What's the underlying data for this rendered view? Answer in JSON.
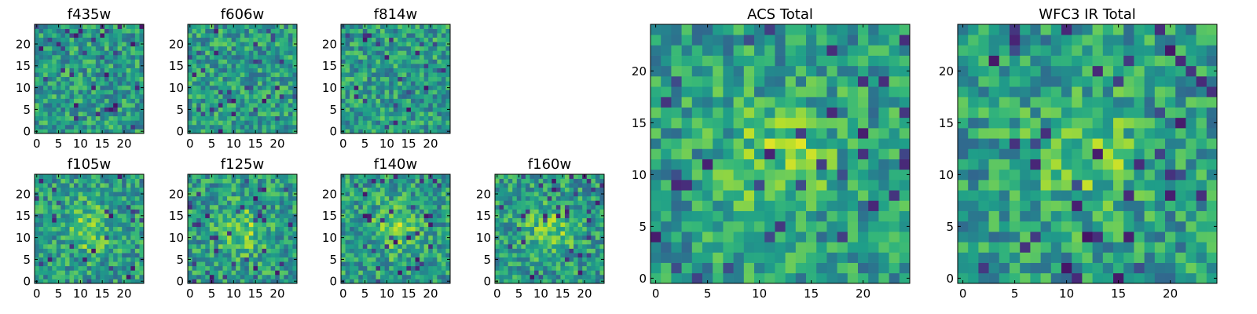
{
  "chart_data": [
    {
      "type": "heatmap",
      "title": "f435w",
      "xticks": [
        "0",
        "5",
        "10",
        "15",
        "20"
      ],
      "yticks": [
        "0",
        "5",
        "10",
        "15",
        "20"
      ],
      "xlim": [
        -0.5,
        24.5
      ],
      "ylim": [
        -0.5,
        24.5
      ],
      "grid_size": 25,
      "colormap": "viridis"
    },
    {
      "type": "heatmap",
      "title": "f606w",
      "xticks": [
        "0",
        "5",
        "10",
        "15",
        "20"
      ],
      "yticks": [
        "0",
        "5",
        "10",
        "15",
        "20"
      ],
      "xlim": [
        -0.5,
        24.5
      ],
      "ylim": [
        -0.5,
        24.5
      ],
      "grid_size": 25,
      "colormap": "viridis"
    },
    {
      "type": "heatmap",
      "title": "f814w",
      "xticks": [
        "0",
        "5",
        "10",
        "15",
        "20"
      ],
      "yticks": [
        "0",
        "5",
        "10",
        "15",
        "20"
      ],
      "xlim": [
        -0.5,
        24.5
      ],
      "ylim": [
        -0.5,
        24.5
      ],
      "grid_size": 25,
      "colormap": "viridis"
    },
    {
      "type": "heatmap",
      "title": "f105w",
      "xticks": [
        "0",
        "5",
        "10",
        "15",
        "20"
      ],
      "yticks": [
        "0",
        "5",
        "10",
        "15",
        "20"
      ],
      "xlim": [
        -0.5,
        24.5
      ],
      "ylim": [
        -0.5,
        24.5
      ],
      "grid_size": 25,
      "colormap": "viridis"
    },
    {
      "type": "heatmap",
      "title": "f125w",
      "xticks": [
        "0",
        "5",
        "10",
        "15",
        "20"
      ],
      "yticks": [
        "0",
        "5",
        "10",
        "15",
        "20"
      ],
      "xlim": [
        -0.5,
        24.5
      ],
      "ylim": [
        -0.5,
        24.5
      ],
      "grid_size": 25,
      "colormap": "viridis"
    },
    {
      "type": "heatmap",
      "title": "f140w",
      "xticks": [
        "0",
        "5",
        "10",
        "15",
        "20"
      ],
      "yticks": [
        "0",
        "5",
        "10",
        "15",
        "20"
      ],
      "xlim": [
        -0.5,
        24.5
      ],
      "ylim": [
        -0.5,
        24.5
      ],
      "grid_size": 25,
      "colormap": "viridis"
    },
    {
      "type": "heatmap",
      "title": "f160w",
      "xticks": [
        "0",
        "5",
        "10",
        "15",
        "20"
      ],
      "yticks": [
        "0",
        "5",
        "10",
        "15",
        "20"
      ],
      "xlim": [
        -0.5,
        24.5
      ],
      "ylim": [
        -0.5,
        24.5
      ],
      "grid_size": 25,
      "colormap": "viridis"
    },
    {
      "type": "heatmap",
      "title": "ACS Total",
      "xticks": [
        "0",
        "5",
        "10",
        "15",
        "20"
      ],
      "yticks": [
        "0",
        "5",
        "10",
        "15",
        "20"
      ],
      "xlim": [
        -0.5,
        24.5
      ],
      "ylim": [
        -0.5,
        24.5
      ],
      "grid_size": 25,
      "colormap": "viridis"
    },
    {
      "type": "heatmap",
      "title": "WFC3 IR Total",
      "xticks": [
        "0",
        "5",
        "10",
        "15",
        "20"
      ],
      "yticks": [
        "0",
        "5",
        "10",
        "15",
        "20"
      ],
      "xlim": [
        -0.5,
        24.5
      ],
      "ylim": [
        -0.5,
        24.5
      ],
      "grid_size": 25,
      "colormap": "viridis"
    }
  ]
}
